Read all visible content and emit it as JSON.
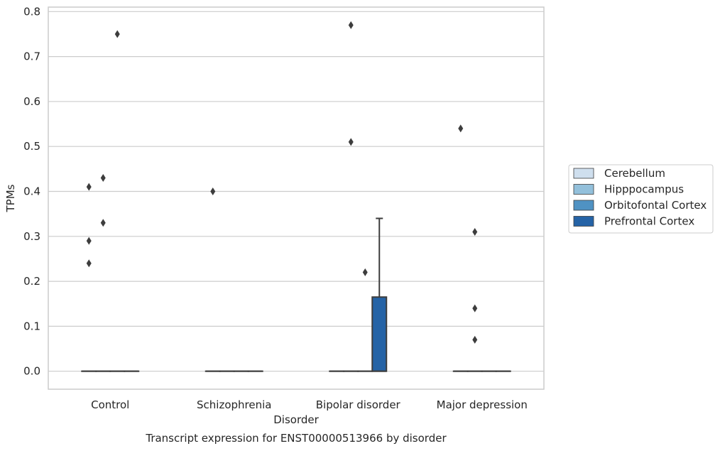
{
  "chart_data": {
    "type": "box",
    "caption": "Transcript expression for ENST00000513966 by disorder",
    "xlabel": "Disorder",
    "ylabel": "TPMs",
    "ylim": [
      -0.04,
      0.81
    ],
    "yticks": [
      0.0,
      0.1,
      0.2,
      0.3,
      0.4,
      0.5,
      0.6,
      0.7,
      0.8
    ],
    "ytick_labels": [
      "0.0",
      "0.1",
      "0.2",
      "0.3",
      "0.4",
      "0.5",
      "0.6",
      "0.7",
      "0.8"
    ],
    "grid": true,
    "legend_position": "right",
    "categories": [
      "Control",
      "Schizophrenia",
      "Bipolar disorder",
      "Major depression"
    ],
    "series": [
      {
        "name": "Cerebellum",
        "color": "#cfdfee"
      },
      {
        "name": "Hipppocampus",
        "color": "#93c0db"
      },
      {
        "name": "Orbitofontal Cortex",
        "color": "#4f92c3"
      },
      {
        "name": "Prefrontal Cortex",
        "color": "#2563a6"
      }
    ],
    "boxes": [
      {
        "category": 0,
        "series": 0,
        "q1": 0,
        "median": 0,
        "q3": 0,
        "whisker_low": 0,
        "whisker_high": 0
      },
      {
        "category": 0,
        "series": 1,
        "q1": 0,
        "median": 0,
        "q3": 0,
        "whisker_low": 0,
        "whisker_high": 0
      },
      {
        "category": 0,
        "series": 2,
        "q1": 0,
        "median": 0,
        "q3": 0,
        "whisker_low": 0,
        "whisker_high": 0
      },
      {
        "category": 0,
        "series": 3,
        "q1": 0,
        "median": 0,
        "q3": 0,
        "whisker_low": 0,
        "whisker_high": 0
      },
      {
        "category": 1,
        "series": 0,
        "q1": 0,
        "median": 0,
        "q3": 0,
        "whisker_low": 0,
        "whisker_high": 0
      },
      {
        "category": 1,
        "series": 1,
        "q1": 0,
        "median": 0,
        "q3": 0,
        "whisker_low": 0,
        "whisker_high": 0
      },
      {
        "category": 1,
        "series": 2,
        "q1": 0,
        "median": 0,
        "q3": 0,
        "whisker_low": 0,
        "whisker_high": 0
      },
      {
        "category": 1,
        "series": 3,
        "q1": 0,
        "median": 0,
        "q3": 0,
        "whisker_low": 0,
        "whisker_high": 0
      },
      {
        "category": 2,
        "series": 0,
        "q1": 0,
        "median": 0,
        "q3": 0,
        "whisker_low": 0,
        "whisker_high": 0
      },
      {
        "category": 2,
        "series": 1,
        "q1": 0,
        "median": 0,
        "q3": 0,
        "whisker_low": 0,
        "whisker_high": 0
      },
      {
        "category": 2,
        "series": 2,
        "q1": 0,
        "median": 0,
        "q3": 0,
        "whisker_low": 0,
        "whisker_high": 0
      },
      {
        "category": 2,
        "series": 3,
        "q1": 0,
        "median": 0,
        "q3": 0.165,
        "whisker_low": 0,
        "whisker_high": 0.34
      },
      {
        "category": 3,
        "series": 0,
        "q1": 0,
        "median": 0,
        "q3": 0,
        "whisker_low": 0,
        "whisker_high": 0
      },
      {
        "category": 3,
        "series": 1,
        "q1": 0,
        "median": 0,
        "q3": 0,
        "whisker_low": 0,
        "whisker_high": 0
      },
      {
        "category": 3,
        "series": 2,
        "q1": 0,
        "median": 0,
        "q3": 0,
        "whisker_low": 0,
        "whisker_high": 0
      },
      {
        "category": 3,
        "series": 3,
        "q1": 0,
        "median": 0,
        "q3": 0,
        "whisker_low": 0,
        "whisker_high": 0
      }
    ],
    "outliers": [
      {
        "category": 0,
        "series": 0,
        "y": 0.24
      },
      {
        "category": 0,
        "series": 0,
        "y": 0.29
      },
      {
        "category": 0,
        "series": 0,
        "y": 0.41
      },
      {
        "category": 0,
        "series": 1,
        "y": 0.33
      },
      {
        "category": 0,
        "series": 1,
        "y": 0.43
      },
      {
        "category": 0,
        "series": 2,
        "y": 0.75
      },
      {
        "category": 1,
        "series": 0,
        "y": 0.4
      },
      {
        "category": 2,
        "series": 1,
        "y": 0.51
      },
      {
        "category": 2,
        "series": 1,
        "y": 0.77
      },
      {
        "category": 2,
        "series": 2,
        "y": 0.22
      },
      {
        "category": 3,
        "series": 0,
        "y": 0.54
      },
      {
        "category": 3,
        "series": 1,
        "y": 0.07
      },
      {
        "category": 3,
        "series": 1,
        "y": 0.14
      },
      {
        "category": 3,
        "series": 1,
        "y": 0.31
      }
    ]
  }
}
